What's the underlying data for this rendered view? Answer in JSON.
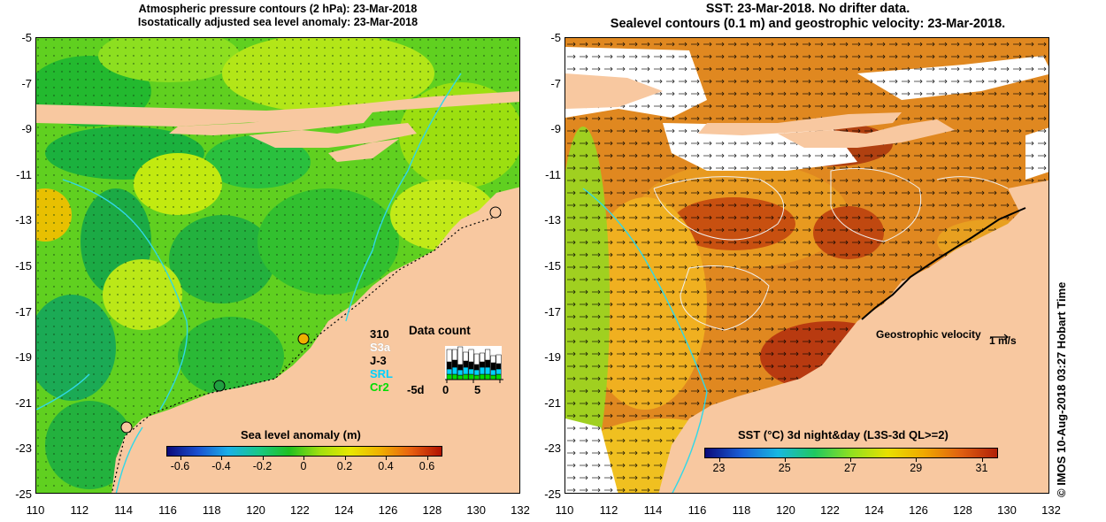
{
  "left_map": {
    "title_line1": "Atmospheric pressure contours (2 hPa): 23-Mar-2018",
    "title_line2": "Isostatically adjusted sea level anomaly: 23-Mar-2018",
    "colorbar": {
      "label": "Sea level anomaly (m)",
      "ticks": [
        "-0.6",
        "-0.4",
        "-0.2",
        "0",
        "0.2",
        "0.4",
        "0.6"
      ],
      "colors": [
        "#0a0a7a",
        "#1a50d0",
        "#1ab0e8",
        "#18c888",
        "#20c020",
        "#a0e010",
        "#e8e800",
        "#f0b000",
        "#e86010",
        "#b01000"
      ]
    },
    "data_count": {
      "title": "Data count",
      "legend": [
        {
          "label": "310",
          "color": "#000000"
        },
        {
          "label": "S3a",
          "color": "#ffffff"
        },
        {
          "label": "J-3",
          "color": "#000000"
        },
        {
          "label": "SRL",
          "color": "#00d0ff"
        },
        {
          "label": "Cr2",
          "color": "#00dd00"
        }
      ],
      "x_ticks": [
        "-5d",
        "0",
        "5"
      ]
    }
  },
  "right_map": {
    "title_line1": "SST: 23-Mar-2018. No drifter data.",
    "title_line2": "Sealevel contours (0.1 m) and geostrophic velocity: 23-Mar-2018.",
    "colorbar": {
      "label": "SST (°C) 3d night&day (L3S-3d QL>=2)",
      "ticks": [
        "23",
        "25",
        "27",
        "29",
        "31"
      ],
      "colors": [
        "#0a0a7a",
        "#1a60d8",
        "#18b8e0",
        "#20c860",
        "#90e020",
        "#e8e000",
        "#f0a800",
        "#e06010",
        "#b02008"
      ]
    },
    "vector_label": "Geostrophic velocity",
    "vector_unit": "1 m/s"
  },
  "axes": {
    "x_ticks": [
      "110",
      "112",
      "114",
      "116",
      "118",
      "120",
      "122",
      "124",
      "126",
      "128",
      "130",
      "132"
    ],
    "y_ticks": [
      "-5",
      "-7",
      "-9",
      "-11",
      "-13",
      "-15",
      "-17",
      "-19",
      "-21",
      "-23",
      "-25"
    ]
  },
  "credit": "© IMOS 10-Aug-2018 03:27 Hobart Time",
  "colors": {
    "land": "#f8c8a0",
    "ssh_base": "#60d020",
    "sst_base": "#e08820"
  }
}
